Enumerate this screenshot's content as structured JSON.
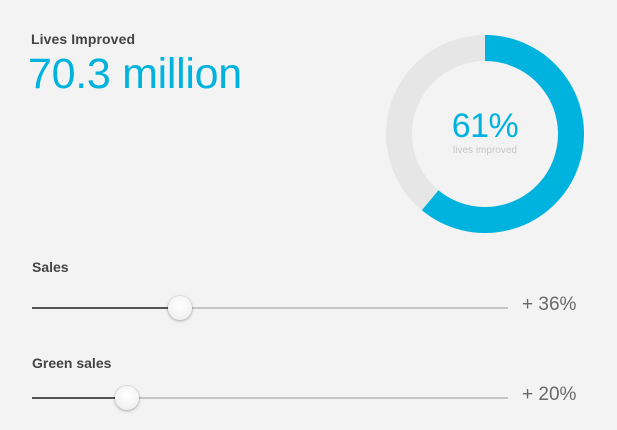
{
  "headline": {
    "label": "Lives Improved",
    "value": "70.3 million"
  },
  "donut": {
    "percent_label": "61%",
    "sub_label": "lives improved",
    "fraction": 0.61,
    "fill_color": "#00b3de",
    "track_color": "#e6e6e6"
  },
  "sliders": [
    {
      "label": "Sales",
      "value_text": "+ 36%",
      "position": 0.31
    },
    {
      "label": "Green sales",
      "value_text": "+ 20%",
      "position": 0.2
    }
  ]
}
